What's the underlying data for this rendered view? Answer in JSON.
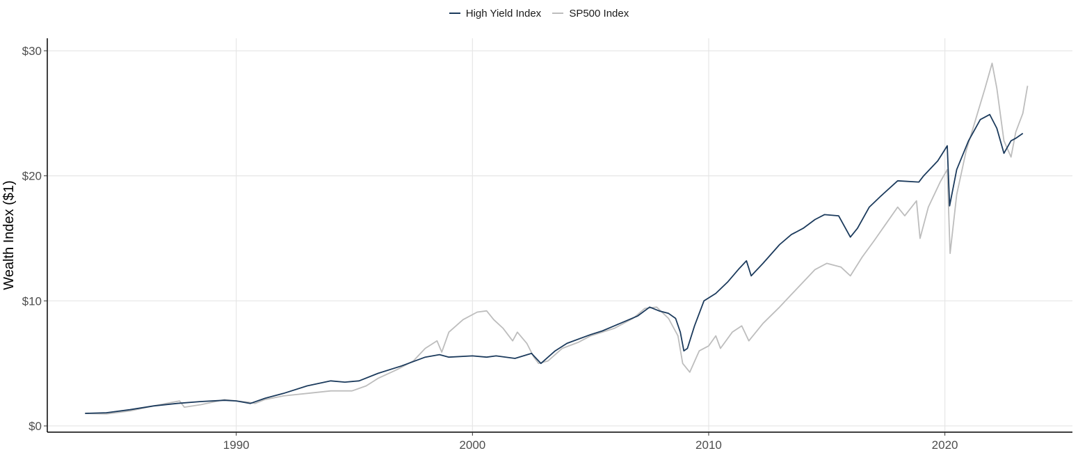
{
  "chart_data": {
    "type": "line",
    "title": "",
    "xlabel": "",
    "ylabel": "Wealth Index ($1)",
    "xlim": [
      1982.0,
      2025.4
    ],
    "ylim": [
      -0.5,
      31.0
    ],
    "x_ticks": [
      1990,
      2000,
      2010,
      2020
    ],
    "x_tick_labels": [
      "1990",
      "2000",
      "2010",
      "2020"
    ],
    "y_ticks": [
      0,
      10,
      20,
      30
    ],
    "y_tick_labels": [
      "$0",
      "$10",
      "$20",
      "$30"
    ],
    "grid": true,
    "legend_position": "top",
    "series": [
      {
        "name": "High Yield Index",
        "color": "#1b3a5c",
        "points": [
          [
            1983.6,
            1.0
          ],
          [
            1984.5,
            1.05
          ],
          [
            1985.5,
            1.3
          ],
          [
            1986.5,
            1.6
          ],
          [
            1987.5,
            1.8
          ],
          [
            1988.5,
            1.95
          ],
          [
            1989.5,
            2.05
          ],
          [
            1990.0,
            2.0
          ],
          [
            1990.6,
            1.8
          ],
          [
            1991.2,
            2.2
          ],
          [
            1992.0,
            2.6
          ],
          [
            1993.0,
            3.2
          ],
          [
            1994.0,
            3.6
          ],
          [
            1994.6,
            3.5
          ],
          [
            1995.2,
            3.6
          ],
          [
            1996.0,
            4.2
          ],
          [
            1997.0,
            4.8
          ],
          [
            1998.0,
            5.5
          ],
          [
            1998.6,
            5.7
          ],
          [
            1999.0,
            5.5
          ],
          [
            2000.0,
            5.6
          ],
          [
            2000.6,
            5.5
          ],
          [
            2001.0,
            5.6
          ],
          [
            2001.8,
            5.4
          ],
          [
            2002.5,
            5.8
          ],
          [
            2002.9,
            5.0
          ],
          [
            2003.5,
            6.0
          ],
          [
            2004.0,
            6.6
          ],
          [
            2005.0,
            7.3
          ],
          [
            2005.5,
            7.6
          ],
          [
            2006.0,
            8.0
          ],
          [
            2007.0,
            8.8
          ],
          [
            2007.5,
            9.5
          ],
          [
            2007.9,
            9.2
          ],
          [
            2008.3,
            9.0
          ],
          [
            2008.6,
            8.6
          ],
          [
            2008.8,
            7.5
          ],
          [
            2008.95,
            6.0
          ],
          [
            2009.1,
            6.2
          ],
          [
            2009.4,
            8.0
          ],
          [
            2009.8,
            10.0
          ],
          [
            2010.3,
            10.6
          ],
          [
            2010.8,
            11.5
          ],
          [
            2011.3,
            12.6
          ],
          [
            2011.6,
            13.2
          ],
          [
            2011.8,
            12.0
          ],
          [
            2012.3,
            13.0
          ],
          [
            2013.0,
            14.5
          ],
          [
            2013.5,
            15.3
          ],
          [
            2014.0,
            15.8
          ],
          [
            2014.5,
            16.5
          ],
          [
            2014.9,
            16.9
          ],
          [
            2015.5,
            16.8
          ],
          [
            2016.0,
            15.1
          ],
          [
            2016.3,
            15.8
          ],
          [
            2016.8,
            17.5
          ],
          [
            2017.3,
            18.4
          ],
          [
            2018.0,
            19.6
          ],
          [
            2018.9,
            19.5
          ],
          [
            2019.1,
            20.0
          ],
          [
            2019.7,
            21.2
          ],
          [
            2020.1,
            22.4
          ],
          [
            2020.2,
            17.6
          ],
          [
            2020.5,
            20.5
          ],
          [
            2021.0,
            22.8
          ],
          [
            2021.5,
            24.5
          ],
          [
            2021.9,
            24.9
          ],
          [
            2022.2,
            23.8
          ],
          [
            2022.5,
            21.8
          ],
          [
            2022.8,
            22.8
          ],
          [
            2023.0,
            23.0
          ],
          [
            2023.3,
            23.4
          ]
        ]
      },
      {
        "name": "SP500 Index",
        "color": "#bdbdbd",
        "points": [
          [
            1983.6,
            1.0
          ],
          [
            1984.5,
            0.95
          ],
          [
            1985.5,
            1.2
          ],
          [
            1986.5,
            1.6
          ],
          [
            1987.6,
            2.0
          ],
          [
            1987.8,
            1.5
          ],
          [
            1988.5,
            1.7
          ],
          [
            1989.5,
            2.1
          ],
          [
            1990.5,
            1.9
          ],
          [
            1990.8,
            1.8
          ],
          [
            1991.2,
            2.1
          ],
          [
            1992.0,
            2.4
          ],
          [
            1993.0,
            2.6
          ],
          [
            1994.0,
            2.8
          ],
          [
            1994.9,
            2.8
          ],
          [
            1995.5,
            3.2
          ],
          [
            1996.0,
            3.8
          ],
          [
            1996.8,
            4.5
          ],
          [
            1997.5,
            5.2
          ],
          [
            1998.0,
            6.2
          ],
          [
            1998.5,
            6.8
          ],
          [
            1998.7,
            5.9
          ],
          [
            1999.0,
            7.5
          ],
          [
            1999.6,
            8.5
          ],
          [
            2000.2,
            9.1
          ],
          [
            2000.6,
            9.2
          ],
          [
            2000.9,
            8.5
          ],
          [
            2001.3,
            7.8
          ],
          [
            2001.7,
            6.8
          ],
          [
            2001.9,
            7.5
          ],
          [
            2002.3,
            6.6
          ],
          [
            2002.6,
            5.5
          ],
          [
            2002.8,
            5.0
          ],
          [
            2003.2,
            5.2
          ],
          [
            2003.8,
            6.2
          ],
          [
            2004.5,
            6.7
          ],
          [
            2005.0,
            7.2
          ],
          [
            2006.0,
            7.8
          ],
          [
            2006.8,
            8.6
          ],
          [
            2007.3,
            9.4
          ],
          [
            2007.8,
            9.5
          ],
          [
            2008.3,
            8.6
          ],
          [
            2008.7,
            7.2
          ],
          [
            2008.9,
            5.0
          ],
          [
            2009.2,
            4.3
          ],
          [
            2009.6,
            6.0
          ],
          [
            2010.0,
            6.4
          ],
          [
            2010.3,
            7.2
          ],
          [
            2010.5,
            6.2
          ],
          [
            2011.0,
            7.5
          ],
          [
            2011.4,
            8.0
          ],
          [
            2011.7,
            6.8
          ],
          [
            2012.3,
            8.2
          ],
          [
            2013.0,
            9.5
          ],
          [
            2013.5,
            10.5
          ],
          [
            2014.0,
            11.5
          ],
          [
            2014.5,
            12.5
          ],
          [
            2015.0,
            13.0
          ],
          [
            2015.6,
            12.7
          ],
          [
            2016.0,
            12.0
          ],
          [
            2016.5,
            13.5
          ],
          [
            2017.0,
            14.8
          ],
          [
            2018.0,
            17.5
          ],
          [
            2018.3,
            16.8
          ],
          [
            2018.8,
            18.0
          ],
          [
            2018.95,
            15.0
          ],
          [
            2019.3,
            17.5
          ],
          [
            2019.8,
            19.5
          ],
          [
            2020.1,
            20.5
          ],
          [
            2020.22,
            13.8
          ],
          [
            2020.5,
            18.5
          ],
          [
            2020.9,
            22.0
          ],
          [
            2021.3,
            24.5
          ],
          [
            2021.7,
            27.0
          ],
          [
            2022.0,
            29.0
          ],
          [
            2022.2,
            27.0
          ],
          [
            2022.5,
            22.8
          ],
          [
            2022.8,
            21.5
          ],
          [
            2023.0,
            23.5
          ],
          [
            2023.3,
            25.0
          ],
          [
            2023.5,
            27.2
          ]
        ]
      }
    ]
  }
}
